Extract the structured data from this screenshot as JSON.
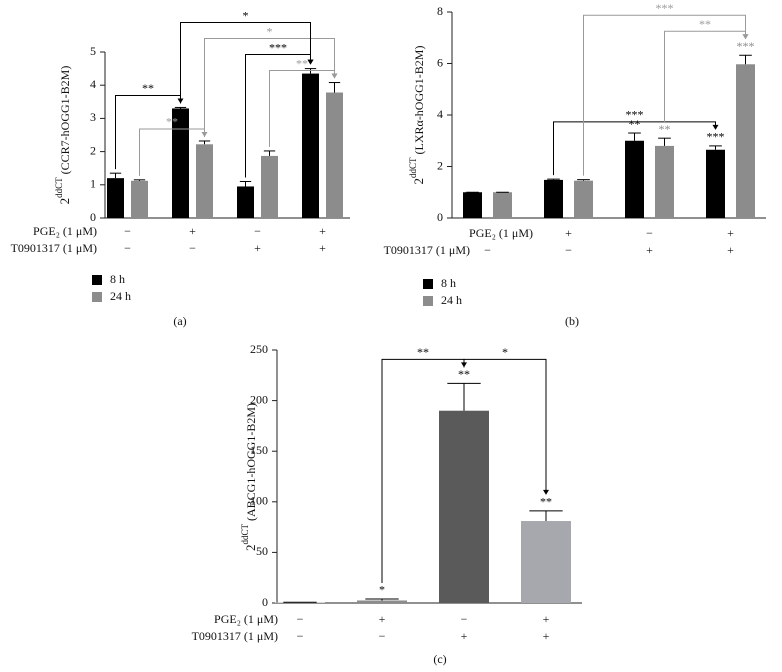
{
  "chart_data": [
    {
      "type": "bar",
      "caption": "(a)",
      "y_label_base": "2",
      "y_label_sup": "ddCT",
      "y_label": "(CCR7-hOGG1-B2M)",
      "categories": [
        null,
        null,
        null,
        null
      ],
      "treatments": [
        {
          "label": "PGE₂ (1 μM)",
          "signs": [
            "−",
            "+",
            "−",
            "+"
          ]
        },
        {
          "label": "T0901317 (1 μM)",
          "signs": [
            "−",
            "−",
            "+",
            "+"
          ]
        }
      ],
      "series": [
        {
          "name": "8 h",
          "color": "#000000",
          "values": [
            1.2,
            3.3,
            0.95,
            4.35
          ],
          "errors": [
            0.15,
            0.03,
            0.15,
            0.15
          ],
          "stars": [
            null,
            null,
            null,
            null
          ]
        },
        {
          "name": "24 h",
          "color": "#8c8c8c",
          "values": [
            1.12,
            2.22,
            1.87,
            3.78
          ],
          "errors": [
            0.03,
            0.1,
            0.15,
            0.3
          ],
          "stars": [
            null,
            null,
            null,
            null
          ]
        }
      ],
      "ylim": [
        0,
        5
      ],
      "yticks": [
        0,
        1,
        2,
        3,
        4,
        5
      ],
      "legend": "bottom-left",
      "brackets": [
        {
          "text": "**",
          "color": "#9a9a9a",
          "from": [
            1,
            0
          ],
          "to": [
            1,
            1
          ]
        },
        {
          "text": "**",
          "color": "#000000",
          "from": [
            0,
            0
          ],
          "to": [
            0,
            1
          ]
        },
        {
          "text": "**",
          "color": "#9a9a9a",
          "from": [
            1,
            2
          ],
          "to": [
            1,
            3
          ]
        },
        {
          "text": "***",
          "color": "#000000",
          "from": [
            0,
            2
          ],
          "to": [
            0,
            3
          ]
        },
        {
          "text": "*",
          "color": "#9a9a9a",
          "from": [
            1,
            1
          ],
          "to": [
            1,
            3
          ]
        },
        {
          "text": "*",
          "color": "#000000",
          "from": [
            0,
            1
          ],
          "to": [
            0,
            3
          ]
        }
      ]
    },
    {
      "type": "bar",
      "caption": "(b)",
      "y_label_base": "2",
      "y_label_sup": "ddCT",
      "y_label": "(LXRα-hOGG1-B2M)",
      "categories": [
        null,
        null,
        null,
        null
      ],
      "treatments": [
        {
          "label": "PGE₂ (1 μM)",
          "signs": [
            null,
            "+",
            "−",
            "+"
          ]
        },
        {
          "label": "T0901317 (1 μM)",
          "signs": [
            "−",
            "−",
            "+",
            "+"
          ]
        }
      ],
      "series": [
        {
          "name": "8 h",
          "color": "#000000",
          "values": [
            1.0,
            1.48,
            3.0,
            2.65
          ],
          "errors": [
            0.0,
            0.03,
            0.3,
            0.15
          ],
          "stars": [
            null,
            null,
            "**",
            "***"
          ]
        },
        {
          "name": "24 h",
          "color": "#8c8c8c",
          "values": [
            1.0,
            1.45,
            2.8,
            5.97
          ],
          "errors": [
            0.0,
            0.04,
            0.3,
            0.35
          ],
          "stars": [
            null,
            null,
            "**",
            "***"
          ]
        }
      ],
      "ylim": [
        0,
        8
      ],
      "yticks": [
        0,
        2,
        4,
        6,
        8
      ],
      "legend": "bottom-left",
      "brackets": [
        {
          "text": "***",
          "color": "#000000",
          "from": [
            0,
            1
          ],
          "to": [
            0,
            3
          ]
        },
        {
          "text": "**",
          "color": "#9a9a9a",
          "from": [
            1,
            2
          ],
          "to": [
            1,
            3
          ]
        },
        {
          "text": "***",
          "color": "#9a9a9a",
          "from": [
            1,
            1
          ],
          "to": [
            1,
            3
          ]
        }
      ]
    },
    {
      "type": "bar",
      "caption": "(c)",
      "y_label_base": "2",
      "y_label_sup": "ddCT",
      "y_label": "(ABCG1-hOGG1-B2M)",
      "categories": [
        null,
        null,
        null,
        null
      ],
      "treatments": [
        {
          "label": "PGE₂ (1 μM)",
          "signs": [
            "−",
            "+",
            "−",
            "+"
          ]
        },
        {
          "label": "T0901317 (1 μM)",
          "signs": [
            "−",
            "−",
            "+",
            "+"
          ]
        }
      ],
      "series": [
        {
          "colors": [
            "#b0b0b0",
            "#8c8c8c",
            "#5a5a5a",
            "#a7a7ae"
          ],
          "values": [
            0.5,
            2.5,
            190,
            81
          ],
          "errors": [
            0.3,
            1.5,
            27,
            10
          ],
          "stars": [
            null,
            "*",
            "**",
            "**"
          ]
        }
      ],
      "ylim": [
        0,
        250
      ],
      "yticks": [
        0,
        50,
        100,
        150,
        200,
        250
      ],
      "brackets": [
        {
          "text": "**",
          "color": "#000000",
          "from": [
            0,
            1
          ],
          "to": [
            0,
            2
          ]
        },
        {
          "text": "*",
          "color": "#000000",
          "from": [
            0,
            2
          ],
          "to": [
            0,
            3
          ]
        }
      ]
    }
  ]
}
